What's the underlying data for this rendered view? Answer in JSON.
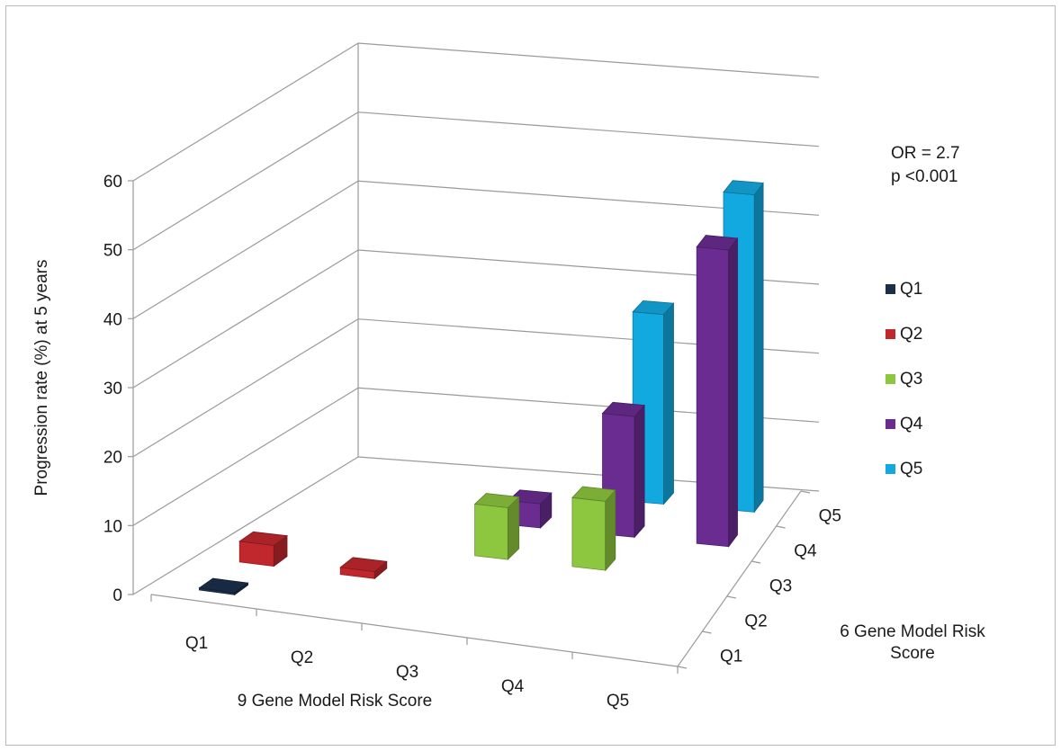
{
  "chart_data": {
    "type": "bar",
    "subtype": "3d-column",
    "title": "",
    "annotation": [
      "OR = 2.7",
      "p <0.001"
    ],
    "ylabel": "Progression rate (%) at 5 years",
    "ylim": [
      0,
      60
    ],
    "yticks": [
      "0",
      "10",
      "20",
      "30",
      "40",
      "50",
      "60"
    ],
    "xlabel": "9 Gene Model Risk Score",
    "x_categories": [
      "Q1",
      "Q2",
      "Q3",
      "Q4",
      "Q5"
    ],
    "zlabel": "6 Gene Model Risk Score",
    "z_categories": [
      "Q1",
      "Q2",
      "Q3",
      "Q4",
      "Q5"
    ],
    "legend_position": "right",
    "grid": true,
    "series": [
      {
        "name": "Q1",
        "color": "#1b2f4b",
        "values": [
          0.3,
          null,
          null,
          null,
          null
        ]
      },
      {
        "name": "Q2",
        "color": "#c0282d",
        "values": [
          3,
          1,
          null,
          null,
          null
        ]
      },
      {
        "name": "Q3",
        "color": "#8dc63f",
        "values": [
          null,
          null,
          7.5,
          10,
          null
        ]
      },
      {
        "name": "Q4",
        "color": "#6a2c91",
        "values": [
          null,
          null,
          3.5,
          17.5,
          43
        ]
      },
      {
        "name": "Q5",
        "color": "#12a9e0",
        "values": [
          null,
          null,
          null,
          27.5,
          46
        ]
      }
    ]
  }
}
